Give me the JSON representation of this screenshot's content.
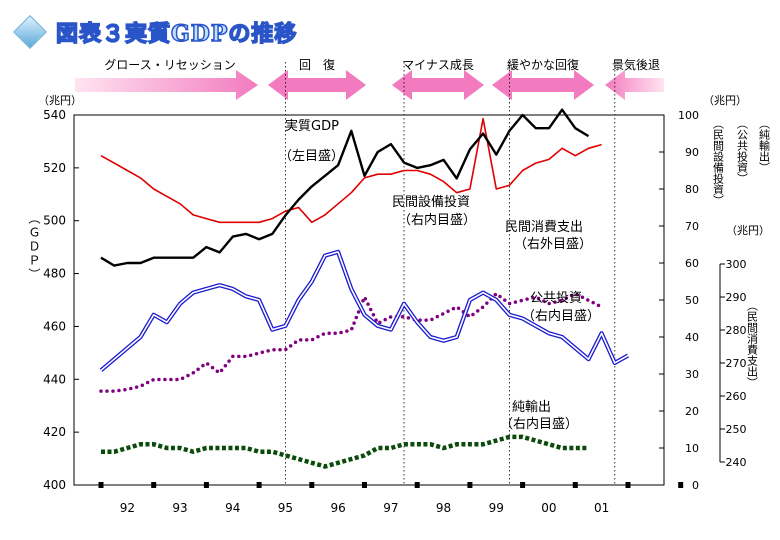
{
  "title": "図表３実質GDPの推移",
  "phases": [
    "グロース・リセッション",
    "回　復",
    "マイナス成長",
    "緩やかな回復",
    "景気後退"
  ],
  "units": {
    "gdp": "（兆円）",
    "right": "（兆円）",
    "consumption": "（兆円）"
  },
  "axis_titles": {
    "gdp": "（ＧＤＰ）",
    "invest_inner": "（民間設備投資）",
    "public_inner": "（公共投資）",
    "netexport_inner": "（純輸出）",
    "consumption": "（民間消費支出）"
  },
  "labels": {
    "gdp": [
      "実質GDP",
      "（左目盛）"
    ],
    "invest": [
      "民間設備投資",
      "（右内目盛）"
    ],
    "consumption": [
      "民間消費支出",
      "（右外目盛）"
    ],
    "public": [
      "公共投資",
      "（右内目盛）"
    ],
    "netexport": [
      "純輸出",
      "（右内目盛）"
    ]
  },
  "chart_data": {
    "type": "line",
    "title": "図表３実質GDPの推移",
    "x_tick_labels": [
      "92",
      "93",
      "94",
      "95",
      "96",
      "97",
      "98",
      "99",
      "00",
      "01"
    ],
    "x_start": 1991.0,
    "x_step": 0.25,
    "phase_boundaries": [
      1994.5,
      1996.75,
      1998.75,
      2000.75
    ],
    "axes": {
      "left": {
        "label": "ＧＤＰ",
        "unit": "兆円",
        "range": [
          400,
          540
        ],
        "ticks": [
          400,
          420,
          440,
          460,
          480,
          500,
          520,
          540
        ]
      },
      "right_inner": {
        "unit": "兆円",
        "range": [
          0,
          100
        ],
        "ticks": [
          0,
          10,
          20,
          30,
          40,
          50,
          60,
          70,
          80,
          90,
          100
        ]
      },
      "right_outer": {
        "label": "民間消費支出",
        "unit": "兆円",
        "range": [
          240,
          300
        ],
        "ticks": [
          240,
          250,
          260,
          270,
          280,
          290,
          300
        ]
      }
    },
    "series": [
      {
        "name": "実質GDP",
        "axis": "left",
        "color": "#000000",
        "style": "solid-thick",
        "values": [
          486,
          483,
          484,
          484,
          486,
          486,
          486,
          486,
          490,
          488,
          494,
          495,
          493,
          495,
          502,
          508,
          513,
          517,
          521,
          534,
          517,
          526,
          529,
          522,
          520,
          521,
          523,
          516,
          527,
          533,
          525,
          534,
          540,
          535,
          535,
          542,
          535,
          532
        ]
      },
      {
        "name": "民間設備投資",
        "axis": "right_inner",
        "color": "#e00000",
        "style": "solid",
        "values": [
          89,
          87,
          85,
          83,
          80,
          78,
          76,
          73,
          72,
          71,
          71,
          71,
          71,
          72,
          74,
          75,
          71,
          73,
          76,
          79,
          83,
          84,
          84,
          85,
          85,
          84,
          82,
          79,
          80,
          99,
          80,
          81,
          85,
          87,
          88,
          91,
          89,
          91,
          92
        ]
      },
      {
        "name": "公共投資",
        "axis": "right_inner",
        "color": "#1a1ad0",
        "style": "double",
        "values": [
          31,
          34,
          37,
          40,
          46,
          44,
          49,
          52,
          53,
          54,
          53,
          51,
          50,
          42,
          43,
          50,
          55,
          62,
          63,
          53,
          46,
          43,
          42,
          49,
          44,
          40,
          39,
          40,
          50,
          52,
          50,
          46,
          45,
          43,
          41,
          40,
          37,
          34,
          41,
          33,
          35
        ]
      },
      {
        "name": "民間消費支出",
        "axis": "right_outer",
        "color": "#800080",
        "style": "dotted",
        "values": [
          261.5,
          261.5,
          262,
          263,
          265,
          265,
          265,
          267,
          270,
          267,
          272,
          272,
          273,
          274,
          274,
          277,
          277,
          279,
          279,
          280,
          290,
          282,
          284,
          284,
          283,
          283,
          285,
          287,
          284,
          287,
          291,
          288,
          289,
          290,
          288,
          289,
          291,
          289,
          287
        ]
      },
      {
        "name": "純輸出",
        "axis": "right_inner",
        "color": "#0a4a0a",
        "style": "dotted-thick",
        "values": [
          9,
          9,
          10,
          11,
          11,
          10,
          10,
          9,
          10,
          10,
          10,
          10,
          9,
          9,
          8,
          7,
          6,
          5,
          6,
          7,
          8,
          10,
          10,
          11,
          11,
          11,
          10,
          11,
          11,
          11,
          12,
          13,
          13,
          12,
          11,
          10,
          10,
          10
        ]
      }
    ]
  }
}
